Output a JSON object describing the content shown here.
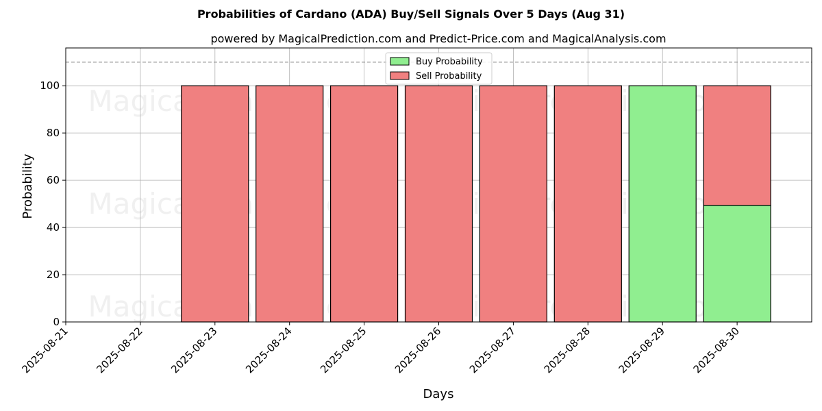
{
  "chart_data": {
    "type": "bar",
    "stacked": true,
    "title": "Probabilities of Cardano (ADA) Buy/Sell Signals Over 5 Days (Aug 31)",
    "subtitle": "powered by MagicalPrediction.com and Predict-Price.com and MagicalAnalysis.com",
    "xlabel": "Days",
    "ylabel": "Probability",
    "x_ticks": [
      "2025-08-21",
      "2025-08-22",
      "2025-08-23",
      "2025-08-24",
      "2025-08-25",
      "2025-08-26",
      "2025-08-27",
      "2025-08-28",
      "2025-08-29",
      "2025-08-30"
    ],
    "categories": [
      "2025-08-23",
      "2025-08-24",
      "2025-08-25",
      "2025-08-26",
      "2025-08-27",
      "2025-08-28",
      "2025-08-29",
      "2025-08-30"
    ],
    "series": [
      {
        "name": "Buy Probability",
        "color": "#90ee90",
        "values": [
          0,
          0,
          0,
          0,
          0,
          0,
          100,
          49.4
        ]
      },
      {
        "name": "Sell Probability",
        "color": "#f08080",
        "values": [
          100,
          100,
          100,
          100,
          100,
          100,
          0,
          50.6
        ]
      }
    ],
    "y_ticks": [
      0,
      20,
      40,
      60,
      80,
      100
    ],
    "ylim": [
      0,
      116
    ],
    "xlim": [
      "2025-08-21",
      "2025-08-31"
    ],
    "reference_line": 110,
    "grid": true,
    "legend_position": "top-center",
    "watermarks": [
      "MagicalAnalysis.com",
      "MagicalPrediction.com",
      "MagicalAnalysis.com",
      "MagicalPrediction.com",
      "MagicalAnalysis.com",
      "MagicalPrediction.com"
    ]
  }
}
